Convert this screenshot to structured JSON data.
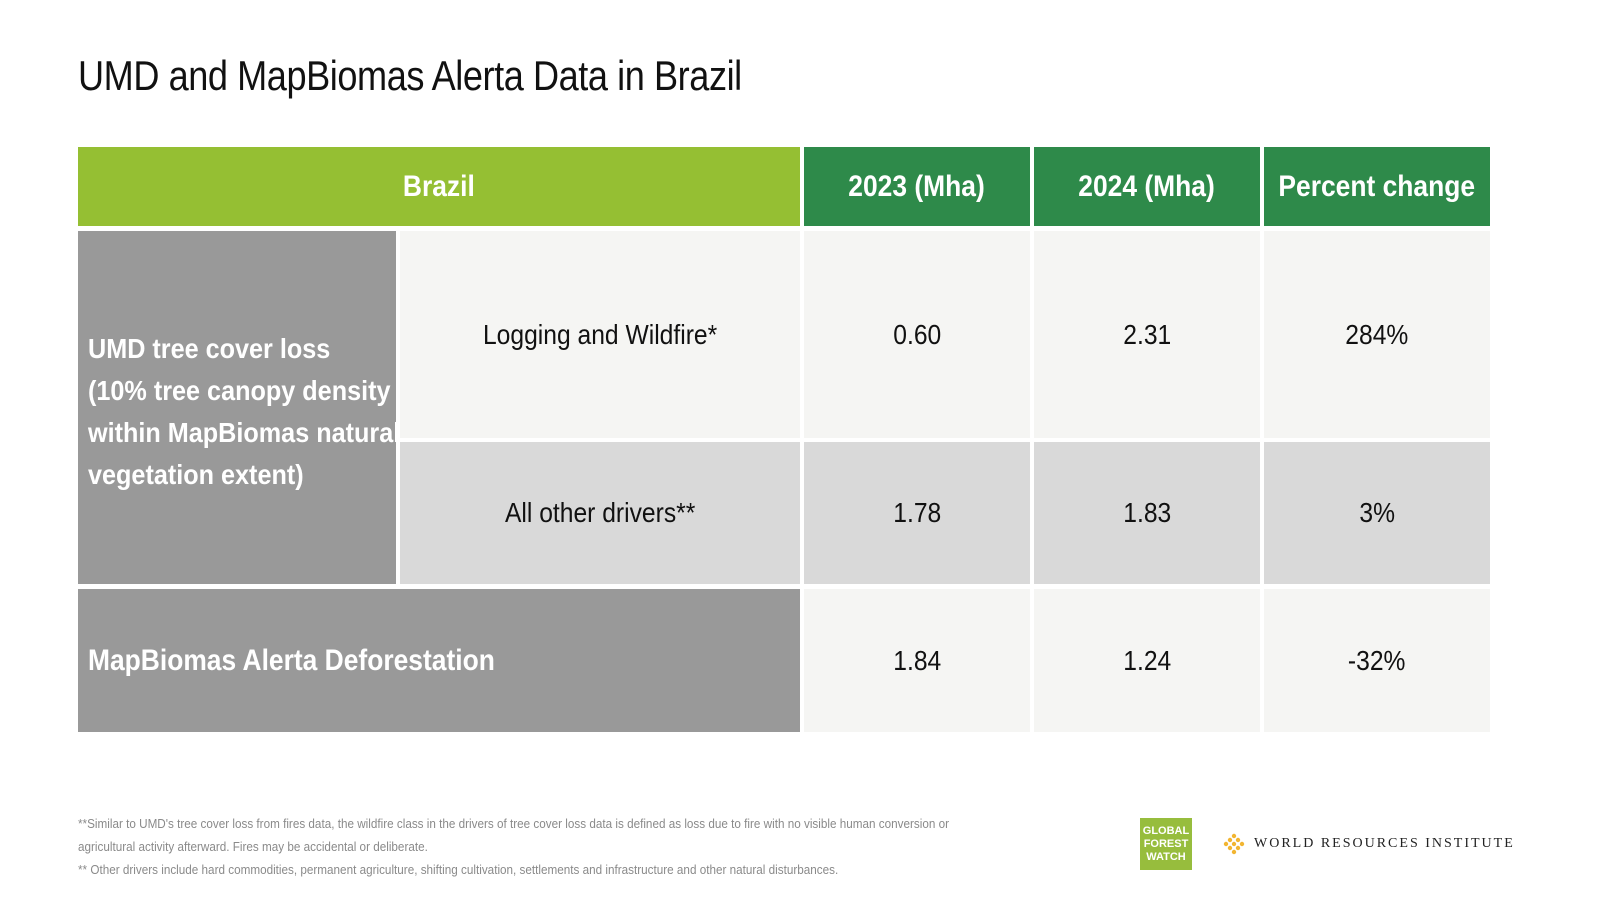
{
  "title": "UMD and MapBiomas Alerta Data in Brazil",
  "table": {
    "headers": {
      "region": "Brazil",
      "y2023": "2023 (Mha)",
      "y2024": "2024 (Mha)",
      "pct": "Percent change"
    },
    "umd_group_label": [
      "UMD tree cover loss",
      "(10% tree canopy density",
      "within MapBiomas natural",
      "vegetation extent)"
    ],
    "rows": [
      {
        "label": "Logging and Wildfire*",
        "y2023": "0.60",
        "y2024": "2.31",
        "pct": "284%"
      },
      {
        "label": "All other drivers**",
        "y2023": "1.78",
        "y2024": "1.83",
        "pct": "3%"
      },
      {
        "label": "MapBiomas Alerta Deforestation",
        "y2023": "1.84",
        "y2024": "1.24",
        "pct": "-32%"
      }
    ]
  },
  "footnotes": [
    "**Similar to UMD's tree cover loss from fires data, the wildfire class in the drivers of tree cover loss data is defined as loss due to fire with no visible human conversion or",
    "agricultural activity afterward. Fires may be accidental or deliberate.",
    "** Other drivers include hard commodities, permanent agriculture, shifting cultivation, settlements and infrastructure and other natural disturbances."
  ],
  "logos": {
    "gfw": [
      "GLOBAL",
      "FOREST",
      "WATCH"
    ],
    "wri": "WORLD RESOURCES INSTITUTE",
    "wri_color": "#f2b531",
    "gfw_color": "#97bd3d"
  },
  "colors": {
    "header_lime": "#95bf33",
    "header_green": "#2e8a4a",
    "label_grey": "#999999",
    "cell_light": "#f5f5f3",
    "cell_mid": "#d9d9d9"
  }
}
